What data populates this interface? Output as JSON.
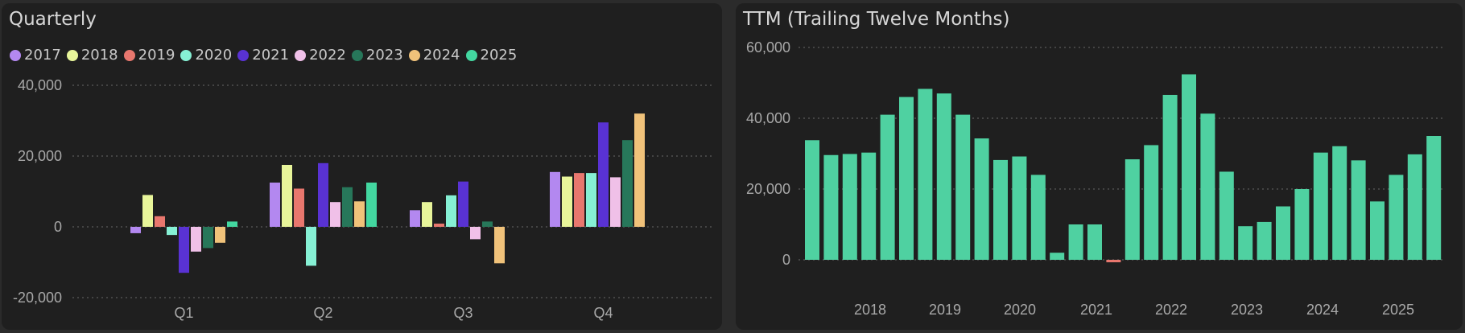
{
  "chart_data": [
    {
      "type": "bar",
      "title": "Quarterly",
      "categories": [
        "Q1",
        "Q2",
        "Q3",
        "Q4"
      ],
      "ylim": [
        -20000,
        40000
      ],
      "yticks": [
        -20000,
        0,
        20000,
        40000
      ],
      "ytick_labels": [
        "-20,000",
        "0",
        "20,000",
        "40,000"
      ],
      "grid": true,
      "legend_position": "top-left",
      "series": [
        {
          "name": "2017",
          "color": "#b388f0",
          "values": [
            -1800,
            12500,
            4700,
            15500
          ]
        },
        {
          "name": "2018",
          "color": "#e8f59a",
          "values": [
            9000,
            17500,
            7000,
            14200
          ]
        },
        {
          "name": "2019",
          "color": "#e8776e",
          "values": [
            3000,
            10800,
            900,
            15200
          ]
        },
        {
          "name": "2020",
          "color": "#86f0d4",
          "values": [
            -2300,
            -11000,
            8900,
            15200
          ]
        },
        {
          "name": "2021",
          "color": "#5932d3",
          "values": [
            -13000,
            18000,
            12800,
            29500
          ]
        },
        {
          "name": "2022",
          "color": "#f0c0e8",
          "values": [
            -7000,
            7000,
            -3500,
            14000
          ]
        },
        {
          "name": "2023",
          "color": "#27775a",
          "values": [
            -6000,
            11200,
            1500,
            24500
          ]
        },
        {
          "name": "2024",
          "color": "#f0c27a",
          "values": [
            -4500,
            7200,
            -10300,
            32000
          ]
        },
        {
          "name": "2025",
          "color": "#43d7a0",
          "values": [
            1500,
            12500,
            null,
            null
          ]
        }
      ]
    },
    {
      "type": "bar",
      "title": "TTM (Trailing Twelve Months)",
      "ylim": [
        0,
        60000
      ],
      "yticks": [
        0,
        20000,
        40000,
        60000
      ],
      "ytick_labels": [
        "0",
        "20,000",
        "40,000",
        "60,000"
      ],
      "grid": true,
      "x_year_labels": [
        "2018",
        "2019",
        "2020",
        "2021",
        "2022",
        "2023",
        "2024",
        "2025"
      ],
      "bar_color": "#4fd1a1",
      "negative_color": "#e8776e",
      "values": [
        33800,
        29600,
        29900,
        30300,
        41000,
        46000,
        48300,
        47000,
        41000,
        34300,
        28200,
        29200,
        24000,
        2000,
        10000,
        10000,
        -700,
        28400,
        32400,
        46600,
        52400,
        41300,
        24900,
        9500,
        10700,
        15100,
        20000,
        30300,
        32100,
        28100,
        16500,
        24000,
        29800,
        35000
      ]
    }
  ]
}
